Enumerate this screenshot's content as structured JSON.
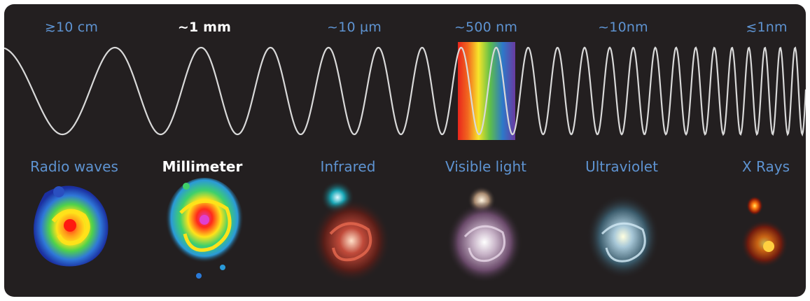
{
  "wavelengths": [
    {
      "label": "≳10 cm",
      "highlight": false
    },
    {
      "label": "~1 mm",
      "highlight": true
    },
    {
      "label": "~10 µm",
      "highlight": false
    },
    {
      "label": "~500 nm",
      "highlight": false
    },
    {
      "label": "~10nm",
      "highlight": false
    },
    {
      "label": "≲1nm",
      "highlight": false
    }
  ],
  "bands": [
    {
      "label": "Radio waves",
      "highlight": false
    },
    {
      "label": "Millimeter",
      "highlight": true
    },
    {
      "label": "Infrared",
      "highlight": false
    },
    {
      "label": "Visible light",
      "highlight": false
    },
    {
      "label": "Ultraviolet",
      "highlight": false
    },
    {
      "label": "X Rays",
      "highlight": false
    }
  ],
  "colors": {
    "panel_background": "#231f20",
    "label_blue": "#5e93d1",
    "label_highlight": "#ffffff",
    "wave_stroke": "#d9d9d9",
    "spectrum": [
      "#ff1a00",
      "#ff7a00",
      "#ffe600",
      "#4cc24a",
      "#2a7bd6",
      "#6a2fa8"
    ]
  }
}
